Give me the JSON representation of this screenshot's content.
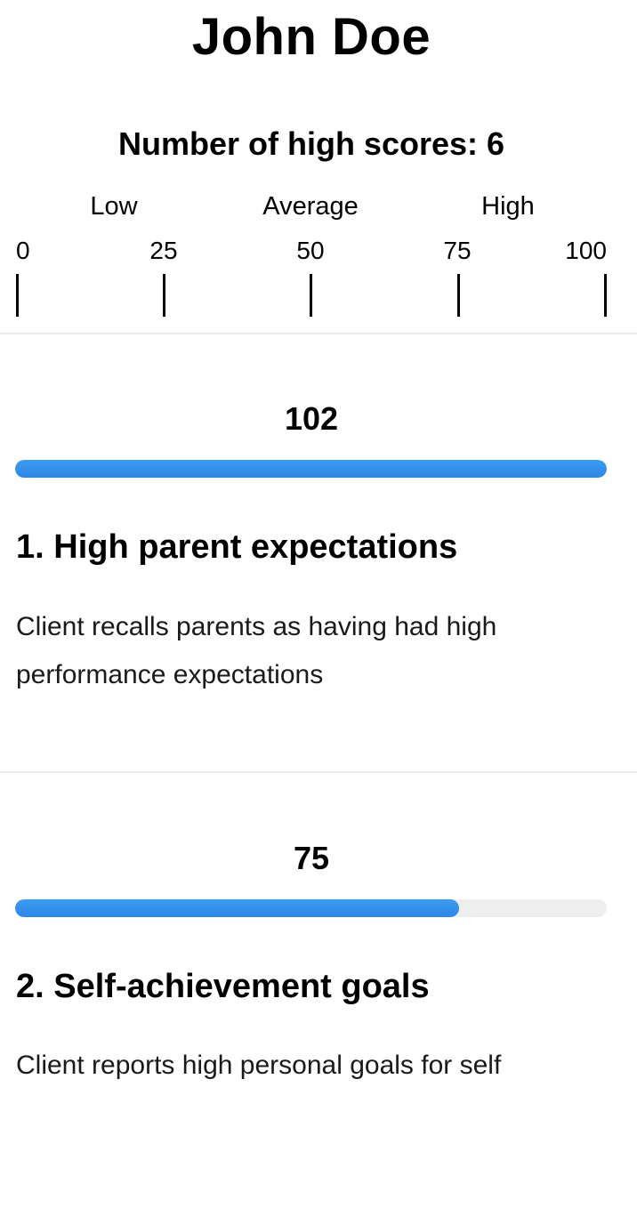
{
  "header": {
    "name": "John Doe",
    "high_scores_text": "Number of high scores: 6"
  },
  "scale": {
    "bands": [
      "Low",
      "Average",
      "High"
    ],
    "ticks": [
      "0",
      "25",
      "50",
      "75",
      "100"
    ],
    "min": 0,
    "max": 100
  },
  "scores": [
    {
      "value": "102",
      "fill_percent": 100,
      "title": "1. High parent expectations",
      "description": "Client recalls parents as having had high performance expectations"
    },
    {
      "value": "75",
      "fill_percent": 75,
      "title": "2. Self-achievement goals",
      "description": "Client reports high personal goals for self"
    }
  ],
  "colors": {
    "bar_fill": "#2d86e6",
    "bar_track": "#eeeeee",
    "divider": "#ececec"
  }
}
